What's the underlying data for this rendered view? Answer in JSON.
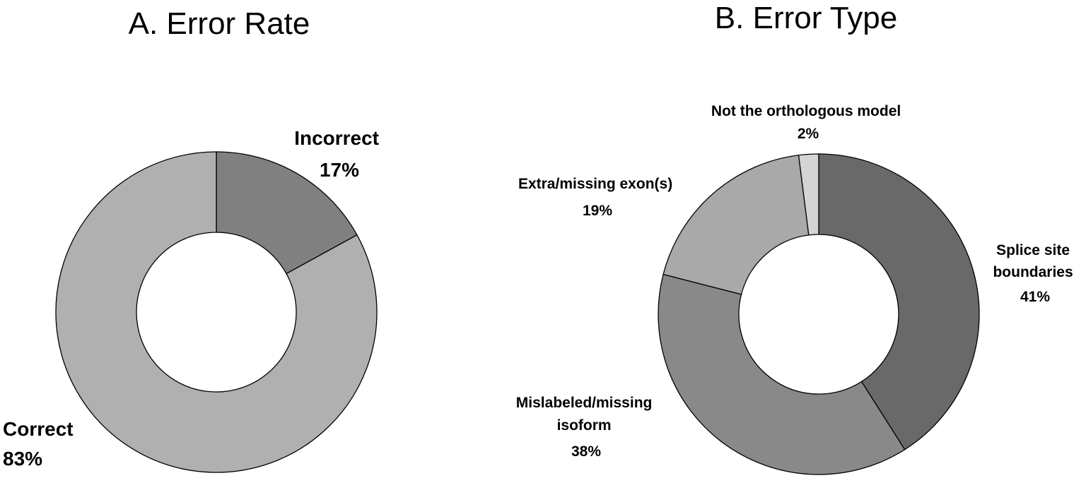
{
  "chart_data": [
    {
      "type": "pie",
      "style": "donut",
      "title": "A. Error Rate",
      "slices": [
        {
          "name": "Incorrect",
          "value": 17,
          "percent_label": "17%",
          "color": "#808080"
        },
        {
          "name": "Correct",
          "value": 83,
          "percent_label": "83%",
          "color": "#b0b0b0"
        }
      ]
    },
    {
      "type": "pie",
      "style": "donut",
      "title": "B. Error Type",
      "slices": [
        {
          "name": "Splice site boundaries",
          "value": 41,
          "percent_label": "41%",
          "color": "#696969"
        },
        {
          "name": "Mislabeled/missing isoform",
          "value": 38,
          "percent_label": "38%",
          "color": "#898989"
        },
        {
          "name": "Extra/missing exon(s)",
          "value": 19,
          "percent_label": "19%",
          "color": "#a9a9a9"
        },
        {
          "name": "Not the orthologous model",
          "value": 2,
          "percent_label": "2%",
          "color": "#d4d4d4"
        }
      ]
    }
  ]
}
